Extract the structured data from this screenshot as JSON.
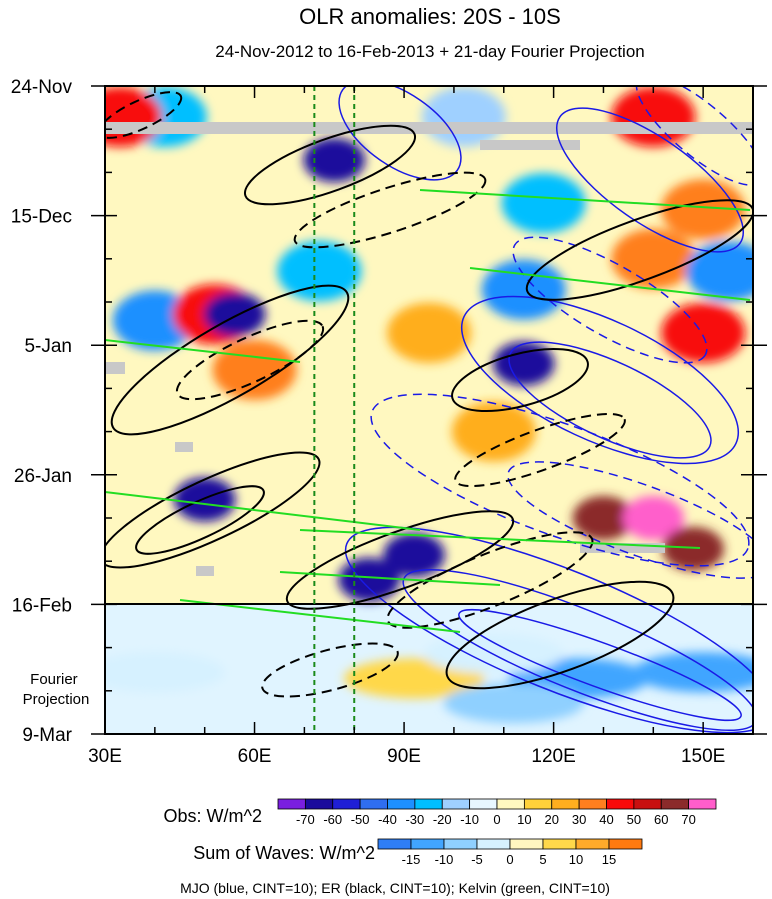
{
  "chart_data": {
    "type": "heatmap",
    "title": "OLR anomalies: 20S - 10S",
    "subtitle": "24-Nov-2012 to 16-Feb-2013 + 21-day Fourier Projection",
    "x_axis": {
      "range": [
        30,
        160
      ],
      "unit": "degrees East",
      "ticks": [
        {
          "value": 30,
          "label": "30E"
        },
        {
          "value": 60,
          "label": "60E"
        },
        {
          "value": 90,
          "label": "90E"
        },
        {
          "value": 120,
          "label": "120E"
        },
        {
          "value": 150,
          "label": "150E"
        }
      ],
      "minor_step": 10
    },
    "y_axis": {
      "range_days": [
        0,
        105
      ],
      "unit": "days since 24-Nov-2012",
      "ticks": [
        {
          "day": 0,
          "label": "24-Nov"
        },
        {
          "day": 21,
          "label": "15-Dec"
        },
        {
          "day": 42,
          "label": "5-Jan"
        },
        {
          "day": 63,
          "label": "26-Jan"
        },
        {
          "day": 84,
          "label": "16-Feb"
        },
        {
          "day": 105,
          "label": "9-Mar"
        }
      ],
      "minor_step_days": 7
    },
    "observation_end_day": 84,
    "projection_label": "Fourier\nProjection",
    "reference_longitudes": [
      72,
      80
    ],
    "obs_colorbar": {
      "label": "Obs: W/m^2",
      "levels": [
        -70,
        -60,
        -50,
        -40,
        -30,
        -20,
        -10,
        0,
        10,
        20,
        30,
        40,
        50,
        60,
        70
      ],
      "colors": [
        "#7a1fe0",
        "#1a0b9c",
        "#1f1fd6",
        "#2f6ef0",
        "#1e90ff",
        "#00bfff",
        "#9fd0ff",
        "#e8f7ff",
        "#fff8c0",
        "#ffd23a",
        "#ffae1f",
        "#ff7f1f",
        "#f80a0a",
        "#c81010",
        "#8b2b2b",
        "#ff5ecb"
      ]
    },
    "waves_colorbar": {
      "label": "Sum of Waves: W/m^2",
      "levels": [
        -15,
        -10,
        -5,
        0,
        5,
        10,
        15
      ],
      "colors": [
        "#2f7ef5",
        "#41a5ff",
        "#8fd0ff",
        "#d6f1ff",
        "#fff6c0",
        "#ffd84a",
        "#ffaa2a",
        "#ff7a10"
      ]
    },
    "contour_series": [
      {
        "name": "MJO",
        "color": "#1a1ae6",
        "cint": 10
      },
      {
        "name": "ER",
        "color": "#000000",
        "cint": 10
      },
      {
        "name": "Kelvin",
        "color": "#22dd22",
        "cint": 10
      }
    ],
    "footer": "MJO (blue, CINT=10); ER (black, CINT=10); Kelvin (green, CINT=10)",
    "obs_blobs": [
      {
        "lon": 76,
        "day": 12,
        "value": -70
      },
      {
        "lon": 73,
        "day": 30,
        "value": -30
      },
      {
        "lon": 42,
        "day": 5,
        "value": -30
      },
      {
        "lon": 40,
        "day": 38,
        "value": -40
      },
      {
        "lon": 52,
        "day": 37,
        "value": 40
      },
      {
        "lon": 60,
        "day": 46,
        "value": 30
      },
      {
        "lon": 56,
        "day": 37,
        "value": -70
      },
      {
        "lon": 50,
        "day": 67,
        "value": -70
      },
      {
        "lon": 92,
        "day": 76,
        "value": -70
      },
      {
        "lon": 83,
        "day": 80,
        "value": -70
      },
      {
        "lon": 114,
        "day": 45,
        "value": -70
      },
      {
        "lon": 118,
        "day": 19,
        "value": -30
      },
      {
        "lon": 114,
        "day": 33,
        "value": -40
      },
      {
        "lon": 102,
        "day": 5,
        "value": -20
      },
      {
        "lon": 140,
        "day": 28,
        "value": 30
      },
      {
        "lon": 150,
        "day": 40,
        "value": 40
      },
      {
        "lon": 130,
        "day": 70,
        "value": 60
      },
      {
        "lon": 140,
        "day": 70,
        "value": 70
      },
      {
        "lon": 148,
        "day": 75,
        "value": 60
      },
      {
        "lon": 108,
        "day": 56,
        "value": 20
      },
      {
        "lon": 95,
        "day": 40,
        "value": 20
      },
      {
        "lon": 140,
        "day": 5,
        "value": 40
      },
      {
        "lon": 150,
        "day": 20,
        "value": 30
      },
      {
        "lon": 33,
        "day": 5,
        "value": 40
      },
      {
        "lon": 155,
        "day": 30,
        "value": -40
      }
    ],
    "projection_blobs": [
      {
        "lon": 40,
        "day": 95,
        "value": -5
      },
      {
        "lon": 92,
        "day": 96,
        "value": 5
      },
      {
        "lon": 150,
        "day": 95,
        "value": -15
      },
      {
        "lon": 125,
        "day": 96,
        "value": -15
      },
      {
        "lon": 112,
        "day": 100,
        "value": -10
      },
      {
        "lon": 108,
        "day": 92,
        "value": -5
      }
    ]
  }
}
